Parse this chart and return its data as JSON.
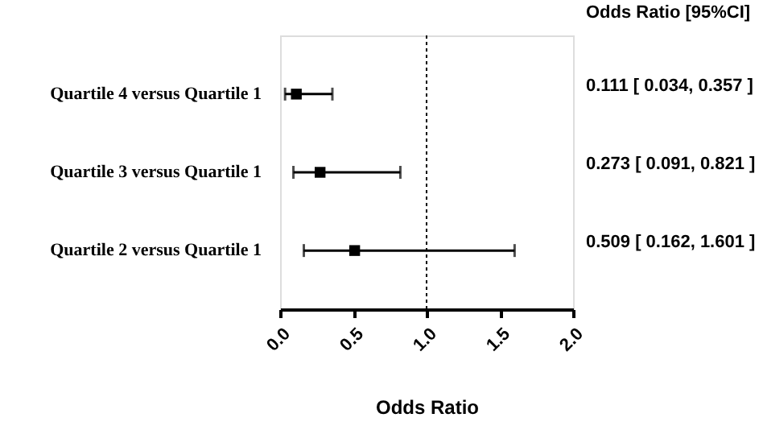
{
  "chart_data": {
    "type": "scatter",
    "orientation": "horizontal",
    "marker": "square",
    "grid": false,
    "categories": [
      "Quartile 4 versus Quartile 1",
      "Quartile 3 versus Quartile 1",
      "Quartile 2 versus Quartile 1"
    ],
    "values": [
      0.111,
      0.273,
      0.509
    ],
    "errors": [
      [
        0.034,
        0.357
      ],
      [
        0.091,
        0.821
      ],
      [
        0.162,
        1.601
      ]
    ],
    "value_labels": [
      "0.111 [ 0.034, 0.357 ]",
      "0.273 [ 0.091, 0.821 ]",
      "0.509 [ 0.162, 1.601 ]"
    ],
    "color": "#000000",
    "xlim": [
      0,
      2
    ],
    "xticks": [
      {
        "value": 0,
        "label": "0.0"
      },
      {
        "value": 0.5,
        "label": "0.5"
      },
      {
        "value": 1,
        "label": "1.0"
      },
      {
        "value": 1.5,
        "label": "1.5"
      },
      {
        "value": 2,
        "label": "2.0"
      }
    ],
    "xlabel": "Odds Ratio",
    "ref_lines": [
      {
        "axis": "x",
        "value": 1,
        "line_style": "dotted"
      }
    ],
    "annotations": [
      "Odds Ratio [95%CI]"
    ]
  }
}
